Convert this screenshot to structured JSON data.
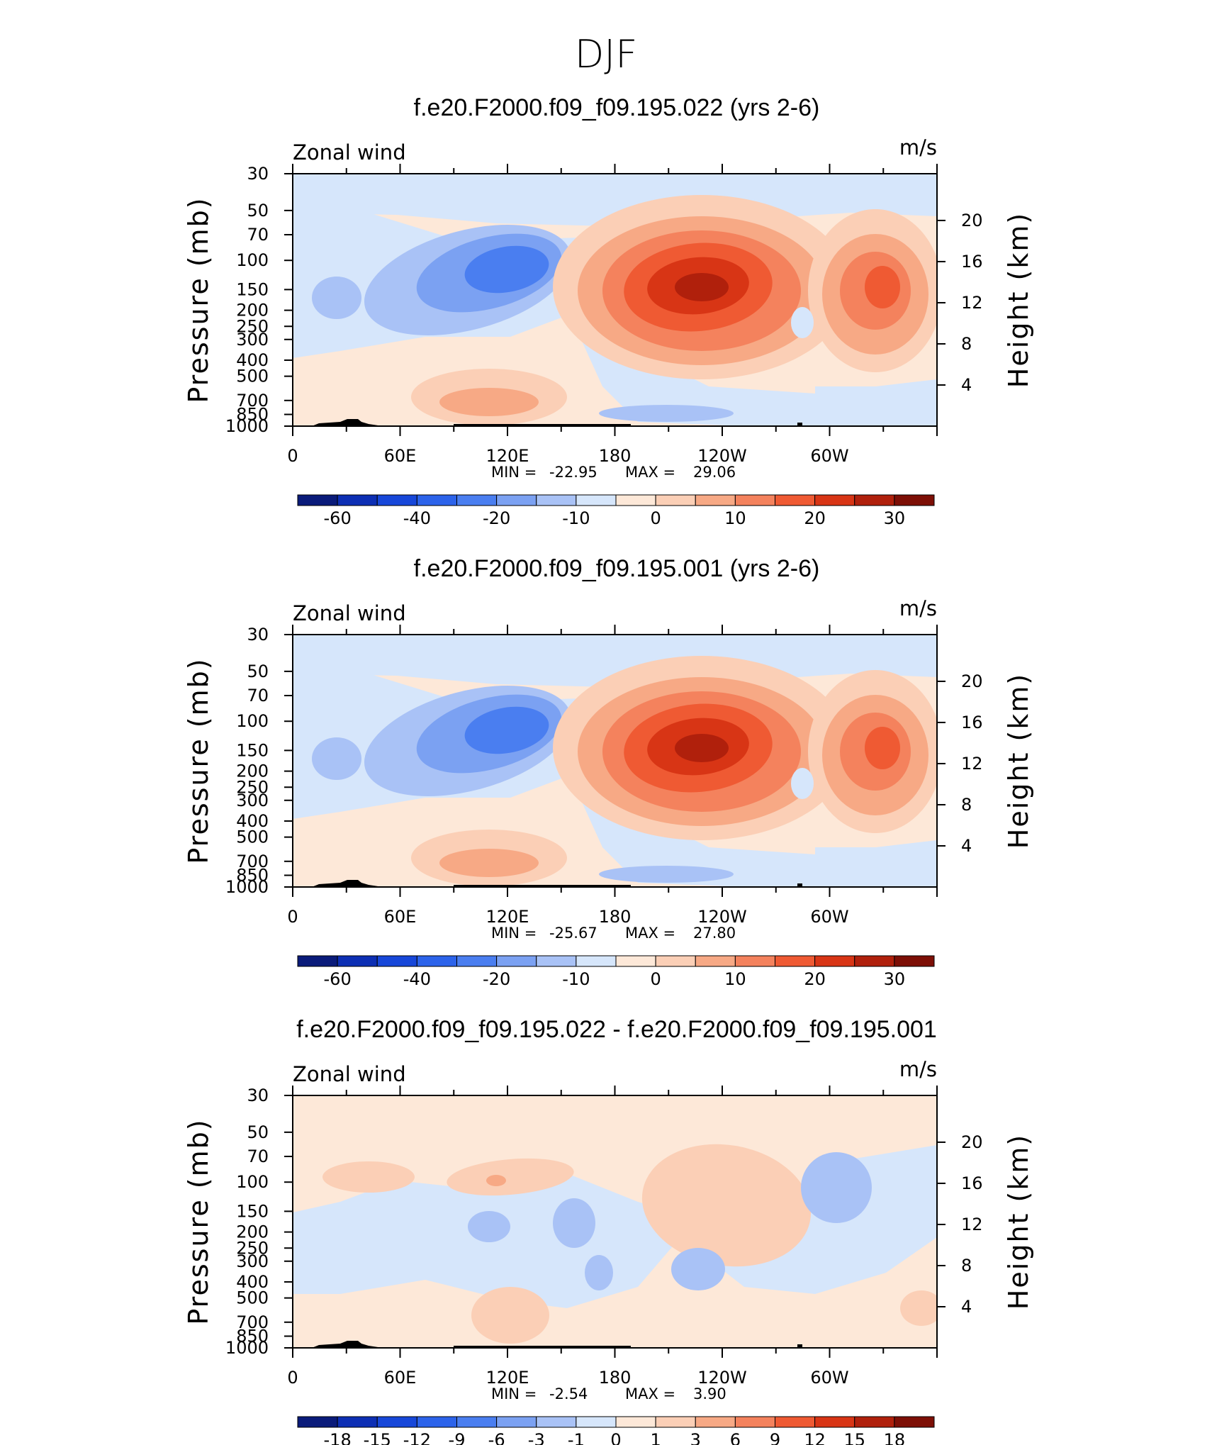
{
  "figure_title": "DJF",
  "chart_data": [
    {
      "type": "heatmap",
      "title": "f.e20.F2000.f09_f09.195.022 (yrs 2-6)",
      "variable_label": "Zonal wind",
      "units_label": "m/s",
      "ylabel": "Pressure (mb)",
      "ylabel_right": "Height (km)",
      "x_ticks": [
        "0",
        "60E",
        "120E",
        "180",
        "120W",
        "60W"
      ],
      "x_range": [
        0,
        360
      ],
      "y_ticks": [
        "30",
        "50",
        "70",
        "100",
        "150",
        "200",
        "250",
        "300",
        "400",
        "500",
        "700",
        "850",
        "1000"
      ],
      "y_ticks_right": [
        "20",
        "16",
        "12",
        "8",
        "4"
      ],
      "stats": {
        "min_label": "MIN =",
        "min": "-22.95",
        "max_label": "MAX =",
        "max": "29.06"
      },
      "levels": [
        -60,
        -50,
        -40,
        -30,
        -20,
        -15,
        -10,
        -5,
        0,
        5,
        10,
        15,
        20,
        25,
        30,
        35
      ],
      "colorbar_labels": [
        "-60",
        "-40",
        "-20",
        "-10",
        "0",
        "10",
        "20",
        "30"
      ],
      "colors": [
        "#0a1b7a",
        "#0d2fb4",
        "#1747d9",
        "#2c63ea",
        "#4a7ef0",
        "#7ba1f2",
        "#a9c2f6",
        "#d6e6fb",
        "#fde8d8",
        "#fbcfb6",
        "#f7a985",
        "#f4825d",
        "#ef5a33",
        "#d83515",
        "#b0200c",
        "#7d0f06"
      ],
      "features": [
        {
          "name": "jet-core-pacific",
          "lon": 115,
          "p": 140,
          "value": 29
        },
        {
          "name": "jet-core-atlantic",
          "lon": 285,
          "p": 150,
          "value": 20
        },
        {
          "name": "easterly-core",
          "lon": 40,
          "p": 130,
          "value": -22
        }
      ]
    },
    {
      "type": "heatmap",
      "title": "f.e20.F2000.f09_f09.195.001 (yrs 2-6)",
      "variable_label": "Zonal wind",
      "units_label": "m/s",
      "ylabel": "Pressure (mb)",
      "ylabel_right": "Height (km)",
      "x_ticks": [
        "0",
        "60E",
        "120E",
        "180",
        "120W",
        "60W"
      ],
      "x_range": [
        0,
        360
      ],
      "y_ticks": [
        "30",
        "50",
        "70",
        "100",
        "150",
        "200",
        "250",
        "300",
        "400",
        "500",
        "700",
        "850",
        "1000"
      ],
      "y_ticks_right": [
        "20",
        "16",
        "12",
        "8",
        "4"
      ],
      "stats": {
        "min_label": "MIN =",
        "min": "-25.67",
        "max_label": "MAX =",
        "max": "27.80"
      },
      "levels": [
        -60,
        -50,
        -40,
        -30,
        -20,
        -15,
        -10,
        -5,
        0,
        5,
        10,
        15,
        20,
        25,
        30,
        35
      ],
      "colorbar_labels": [
        "-60",
        "-40",
        "-20",
        "-10",
        "0",
        "10",
        "20",
        "30"
      ],
      "colors": [
        "#0a1b7a",
        "#0d2fb4",
        "#1747d9",
        "#2c63ea",
        "#4a7ef0",
        "#7ba1f2",
        "#a9c2f6",
        "#d6e6fb",
        "#fde8d8",
        "#fbcfb6",
        "#f7a985",
        "#f4825d",
        "#ef5a33",
        "#d83515",
        "#b0200c",
        "#7d0f06"
      ],
      "features": [
        {
          "name": "jet-core-pacific",
          "lon": 115,
          "p": 145,
          "value": 27.8
        },
        {
          "name": "jet-core-atlantic",
          "lon": 285,
          "p": 150,
          "value": 20
        },
        {
          "name": "easterly-core",
          "lon": 40,
          "p": 130,
          "value": -25
        }
      ]
    },
    {
      "type": "heatmap",
      "title": "f.e20.F2000.f09_f09.195.022 - f.e20.F2000.f09_f09.195.001",
      "variable_label": "Zonal wind",
      "units_label": "m/s",
      "ylabel": "Pressure (mb)",
      "ylabel_right": "Height (km)",
      "x_ticks": [
        "0",
        "60E",
        "120E",
        "180",
        "120W",
        "60W"
      ],
      "x_range": [
        0,
        360
      ],
      "y_ticks": [
        "30",
        "50",
        "70",
        "100",
        "150",
        "200",
        "250",
        "300",
        "400",
        "500",
        "700",
        "850",
        "1000"
      ],
      "y_ticks_right": [
        "20",
        "16",
        "12",
        "8",
        "4"
      ],
      "stats": {
        "min_label": "MIN =",
        "min": "-2.54",
        "max_label": "MAX =",
        "max": "3.90"
      },
      "levels": [
        -18,
        -15,
        -12,
        -9,
        -6,
        -3,
        -1,
        0,
        1,
        3,
        6,
        9,
        12,
        15,
        18
      ],
      "colorbar_labels": [
        "-18",
        "-15",
        "-12",
        "-9",
        "-6",
        "-3",
        "-1",
        "0",
        "1",
        "3",
        "6",
        "9",
        "12",
        "15",
        "18"
      ],
      "colors": [
        "#0a1b7a",
        "#0d2fb4",
        "#1747d9",
        "#2c63ea",
        "#4a7ef0",
        "#7ba1f2",
        "#a9c2f6",
        "#d6e6fb",
        "#fde8d8",
        "#fbcfb6",
        "#f7a985",
        "#f4825d",
        "#ef5a33",
        "#d83515",
        "#b0200c",
        "#7d0f06"
      ],
      "features": [
        {
          "name": "positive-anomaly",
          "lon": 220,
          "p": 150,
          "value": 3.9
        },
        {
          "name": "negative-anomaly",
          "lon": 265,
          "p": 300,
          "value": -2.5
        }
      ]
    }
  ]
}
